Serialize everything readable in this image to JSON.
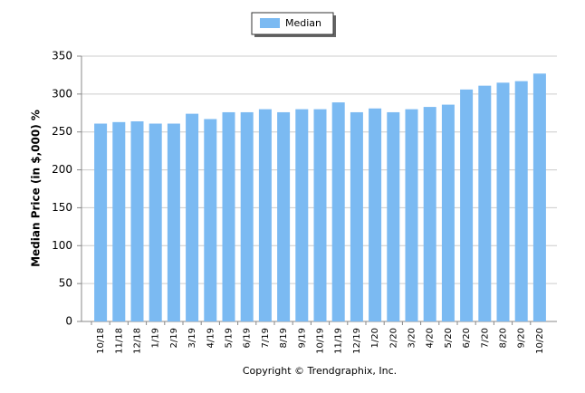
{
  "chart_data": {
    "type": "bar",
    "y_label": "Median Price (in $,000) %",
    "footer": "Copyright © Trendgraphix, Inc.",
    "categories": [
      "10/18",
      "11/18",
      "12/18",
      "1/19",
      "2/19",
      "3/19",
      "4/19",
      "5/19",
      "6/19",
      "7/19",
      "8/19",
      "9/19",
      "10/19",
      "11/19",
      "12/19",
      "1/20",
      "2/20",
      "3/20",
      "4/20",
      "5/20",
      "6/20",
      "7/20",
      "8/20",
      "9/20",
      "10/20"
    ],
    "series": [
      {
        "name": "Median",
        "color": "#7bbaf2",
        "values": [
          261,
          263,
          264,
          261,
          261,
          274,
          267,
          276,
          276,
          280,
          276,
          280,
          280,
          289,
          276,
          281,
          276,
          280,
          283,
          286,
          306,
          311,
          315,
          317,
          327
        ]
      }
    ],
    "ylim": [
      0,
      350
    ],
    "yticks": [
      0,
      50,
      100,
      150,
      200,
      250,
      300,
      350
    ],
    "grid": true,
    "legend": "top"
  }
}
